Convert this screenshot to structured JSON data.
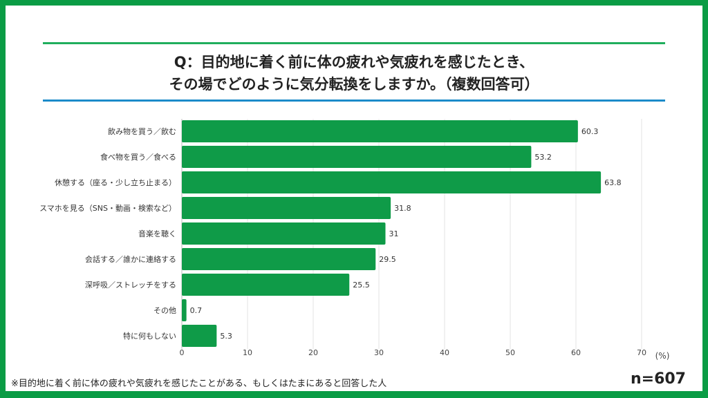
{
  "title_line1": "Q：目的地に着く前に体の疲れや気疲れを感じたとき、",
  "title_line2": "その場でどのように気分転換をしますか。（複数回答可）",
  "note": "※目的地に着く前に体の疲れや気疲れを感じたことがある、もしくはたまにあると回答した人",
  "sample_size": "n=607",
  "colors": {
    "frame": "#0a9c45",
    "bar": "#0f9b48",
    "top_rule": "#1fae5c",
    "bottom_rule": "#1b8bc9"
  },
  "chart_data": {
    "type": "bar",
    "orientation": "horizontal",
    "categories": [
      "飲み物を買う／飲む",
      "食べ物を買う／食べる",
      "休憩する（座る・少し立ち止まる）",
      "スマホを見る（SNS・動画・検索など）",
      "音楽を聴く",
      "会話する／誰かに連絡する",
      "深呼吸／ストレッチをする",
      "その他",
      "特に何もしない"
    ],
    "values": [
      60.3,
      53.2,
      63.8,
      31.8,
      31,
      29.5,
      25.5,
      0.7,
      5.3
    ],
    "xlim": [
      0,
      70
    ],
    "xticks": [
      "0",
      "10",
      "20",
      "30",
      "40",
      "50",
      "60",
      "70"
    ],
    "unit": "(%)",
    "grid": true
  }
}
